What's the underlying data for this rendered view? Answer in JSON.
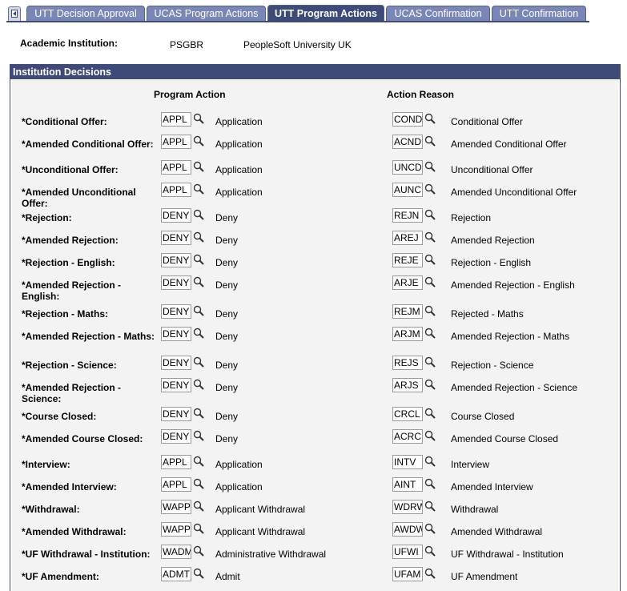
{
  "tabs": [
    {
      "label": "UTT Decision Approval"
    },
    {
      "label": "UCAS Program Actions"
    },
    {
      "label": "UTT Program Actions"
    },
    {
      "label": "UCAS Confirmation"
    },
    {
      "label": "UTT Confirmation"
    }
  ],
  "active_tab": "UTT Program Actions",
  "header": {
    "label": "Academic Institution:",
    "code": "PSGBR",
    "name": "PeopleSoft University UK"
  },
  "section": {
    "title": "Institution Decisions",
    "col_program_action": "Program Action",
    "col_action_reason": "Action Reason"
  },
  "rows": [
    {
      "label": "*Conditional Offer:",
      "action_code": "APPL",
      "action_desc": "Application",
      "reason_code": "COND",
      "reason_desc": "Conditional Offer"
    },
    {
      "label": "*Amended Conditional Offer:",
      "action_code": "APPL",
      "action_desc": "Application",
      "reason_code": "ACND",
      "reason_desc": "Amended Conditional Offer"
    },
    {
      "label": "*Unconditional Offer:",
      "action_code": "APPL",
      "action_desc": "Application",
      "reason_code": "UNCD",
      "reason_desc": "Unconditional Offer"
    },
    {
      "label": "*Amended Unconditional Offer:",
      "action_code": "APPL",
      "action_desc": "Application",
      "reason_code": "AUNC",
      "reason_desc": "Amended Unconditional Offer"
    },
    {
      "label": "*Rejection:",
      "action_code": "DENY",
      "action_desc": "Deny",
      "reason_code": "REJN",
      "reason_desc": "Rejection"
    },
    {
      "label": "*Amended Rejection:",
      "action_code": "DENY",
      "action_desc": "Deny",
      "reason_code": "AREJ",
      "reason_desc": "Amended Rejection"
    },
    {
      "label": "*Rejection - English:",
      "action_code": "DENY",
      "action_desc": "Deny",
      "reason_code": "REJE",
      "reason_desc": "Rejection - English"
    },
    {
      "label": "*Amended Rejection - English:",
      "action_code": "DENY",
      "action_desc": "Deny",
      "reason_code": "ARJE",
      "reason_desc": "Amended Rejection - English"
    },
    {
      "label": "*Rejection - Maths:",
      "action_code": "DENY",
      "action_desc": "Deny",
      "reason_code": "REJM",
      "reason_desc": "Rejected - Maths"
    },
    {
      "label": "*Amended Rejection - Maths:",
      "action_code": "DENY",
      "action_desc": "Deny",
      "reason_code": "ARJM",
      "reason_desc": "Amended Rejection - Maths"
    },
    {
      "label": "*Rejection - Science:",
      "action_code": "DENY",
      "action_desc": "Deny",
      "reason_code": "REJS",
      "reason_desc": "Rejection - Science"
    },
    {
      "label": "*Amended Rejection - Science:",
      "action_code": "DENY",
      "action_desc": "Deny",
      "reason_code": "ARJS",
      "reason_desc": "Amended Rejection - Science"
    },
    {
      "label": "*Course Closed:",
      "action_code": "DENY",
      "action_desc": "Deny",
      "reason_code": "CRCL",
      "reason_desc": "Course Closed"
    },
    {
      "label": "*Amended Course Closed:",
      "action_code": "DENY",
      "action_desc": "Deny",
      "reason_code": "ACRC",
      "reason_desc": "Amended Course Closed"
    },
    {
      "label": "*Interview:",
      "action_code": "APPL",
      "action_desc": "Application",
      "reason_code": "INTV",
      "reason_desc": "Interview"
    },
    {
      "label": "*Amended Interview:",
      "action_code": "APPL",
      "action_desc": "Application",
      "reason_code": "AINT",
      "reason_desc": "Amended Interview"
    },
    {
      "label": "*Withdrawal:",
      "action_code": "WAPP",
      "action_desc": "Applicant Withdrawal",
      "reason_code": "WDRW",
      "reason_desc": "Withdrawal"
    },
    {
      "label": "*Amended Withdrawal:",
      "action_code": "WAPP",
      "action_desc": "Applicant Withdrawal",
      "reason_code": "AWDW",
      "reason_desc": "Amended Withdrawal"
    },
    {
      "label": "*UF Withdrawal - Institution:",
      "action_code": "WADM",
      "action_desc": "Administrative Withdrawal",
      "reason_code": "UFWI",
      "reason_desc": "UF Withdrawal - Institution"
    },
    {
      "label": "*UF Amendment:",
      "action_code": "ADMT",
      "action_desc": "Admit",
      "reason_code": "UFAM",
      "reason_desc": "UF Amendment"
    }
  ]
}
